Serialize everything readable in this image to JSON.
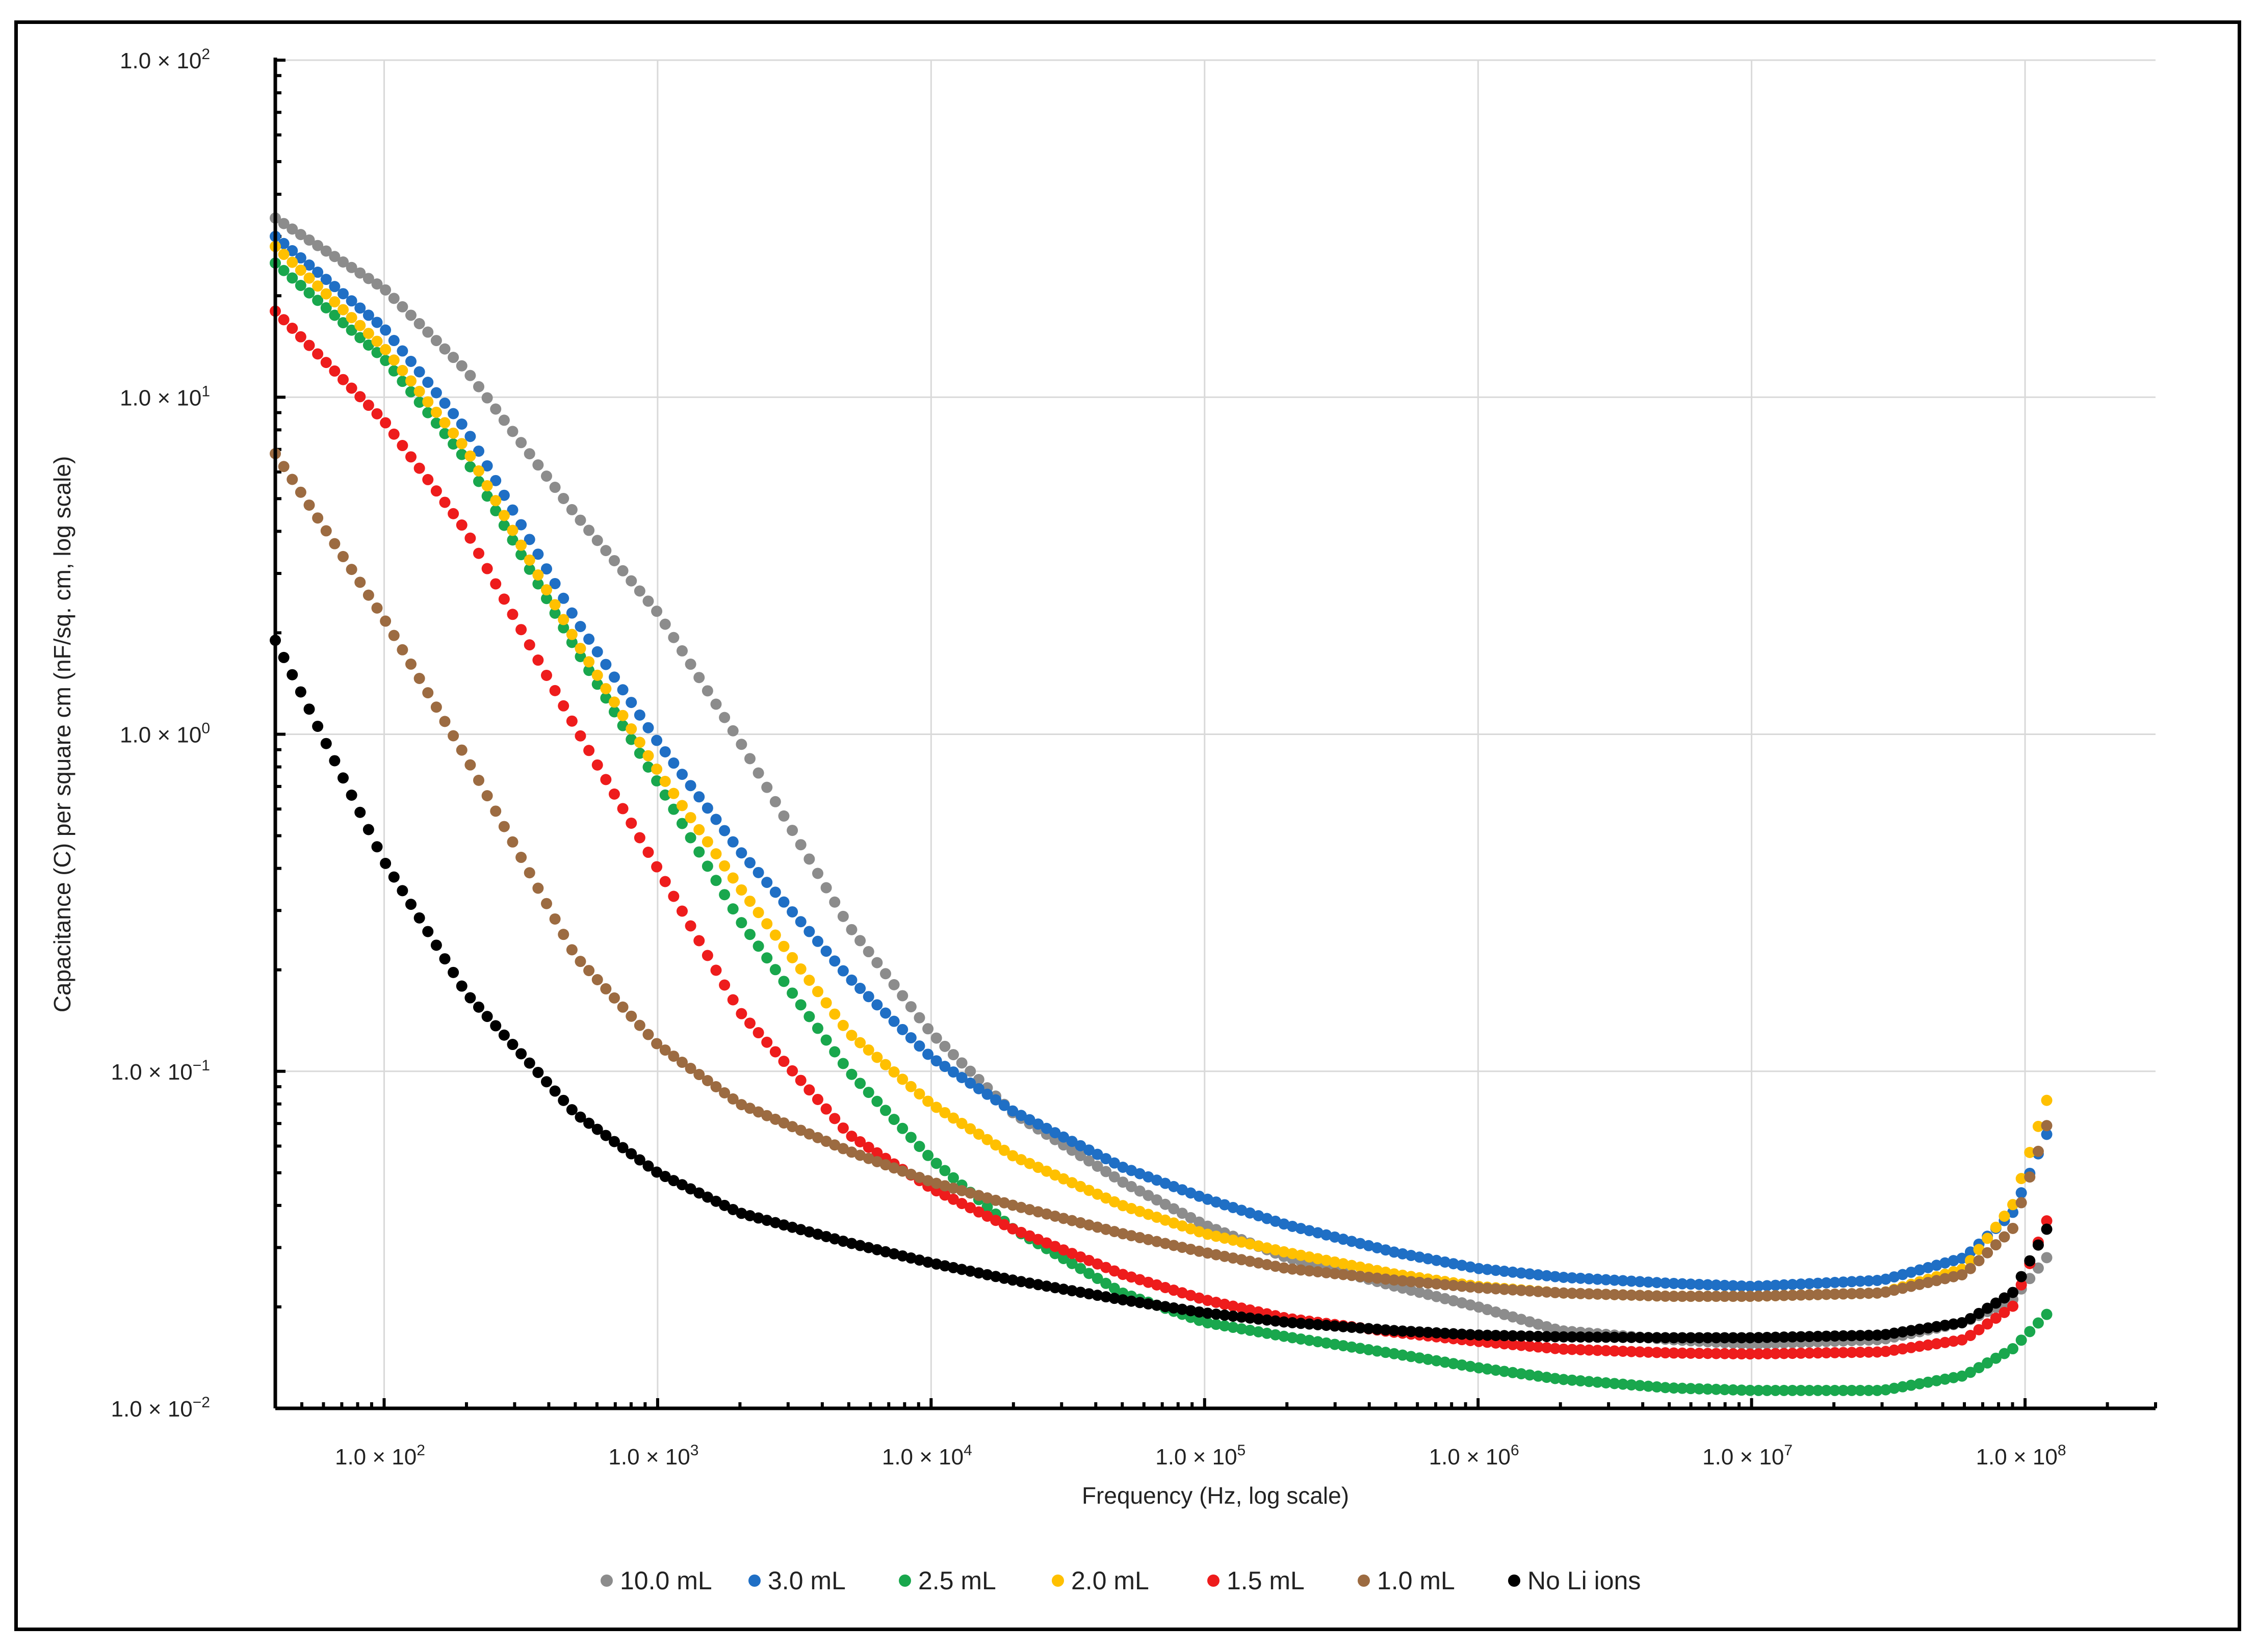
{
  "chart_data": {
    "type": "scatter",
    "xscale": "log",
    "yscale": "log",
    "xlim": [
      40,
      300000000
    ],
    "ylim": [
      0.01,
      100
    ],
    "grid": true,
    "legend_position": "bottom",
    "xlabel": "Frequency (Hz, log scale)",
    "ylabel": "Capacitance (C) per square cm (nF/sq. cm, log scale)",
    "x_ticks": [
      {
        "value": 100,
        "mant": "1.0 × 10",
        "exp": "2"
      },
      {
        "value": 1000,
        "mant": "1.0 × 10",
        "exp": "3"
      },
      {
        "value": 10000,
        "mant": "1.0 × 10",
        "exp": "4"
      },
      {
        "value": 100000,
        "mant": "1.0 × 10",
        "exp": "5"
      },
      {
        "value": 1000000,
        "mant": "1.0 × 10",
        "exp": "6"
      },
      {
        "value": 10000000,
        "mant": "1.0 × 10",
        "exp": "7"
      },
      {
        "value": 100000000,
        "mant": "1.0 × 10",
        "exp": "8"
      }
    ],
    "y_ticks": [
      {
        "value": 100,
        "mant": "1.0 × 10",
        "exp": "2"
      },
      {
        "value": 10,
        "mant": "1.0 × 10",
        "exp": "1"
      },
      {
        "value": 1,
        "mant": "1.0 × 10",
        "exp": "0"
      },
      {
        "value": 0.1,
        "mant": "1.0 × 10",
        "exp": "−1"
      },
      {
        "value": 0.01,
        "mant": "1.0 × 10",
        "exp": "−2"
      }
    ],
    "series": [
      {
        "name": "10.0 mL",
        "color": "#8c8c8c",
        "x": [
          40,
          100,
          200,
          500,
          1000,
          2000,
          5000,
          10000,
          20000,
          50000,
          100000,
          200000,
          500000,
          1000000,
          2000000,
          5000000,
          10000000,
          30000000,
          60000000,
          90000000,
          120000000
        ],
        "y": [
          34,
          21,
          12,
          4.5,
          2.3,
          0.95,
          0.27,
          0.13,
          0.075,
          0.047,
          0.035,
          0.028,
          0.023,
          0.02,
          0.017,
          0.016,
          0.0155,
          0.016,
          0.018,
          0.021,
          0.028
        ]
      },
      {
        "name": "3.0 mL",
        "color": "#1f6fc5",
        "x": [
          40,
          100,
          200,
          500,
          1000,
          2000,
          5000,
          10000,
          20000,
          50000,
          100000,
          200000,
          500000,
          1000000,
          2000000,
          5000000,
          10000000,
          30000000,
          60000000,
          90000000,
          120000000
        ],
        "y": [
          30,
          16,
          8,
          2.2,
          0.95,
          0.45,
          0.19,
          0.11,
          0.076,
          0.052,
          0.042,
          0.035,
          0.029,
          0.026,
          0.0245,
          0.0235,
          0.023,
          0.024,
          0.028,
          0.038,
          0.065
        ]
      },
      {
        "name": "2.5 mL",
        "color": "#19a74d",
        "x": [
          40,
          100,
          200,
          500,
          1000,
          2000,
          5000,
          10000,
          20000,
          50000,
          100000,
          200000,
          500000,
          1000000,
          2000000,
          5000000,
          10000000,
          30000000,
          60000000,
          90000000,
          120000000
        ],
        "y": [
          25,
          13,
          6.5,
          1.8,
          0.72,
          0.28,
          0.1,
          0.055,
          0.034,
          0.022,
          0.018,
          0.0163,
          0.0145,
          0.0132,
          0.0122,
          0.0115,
          0.0113,
          0.0113,
          0.0125,
          0.015,
          0.019
        ]
      },
      {
        "name": "2.0 mL",
        "color": "#ffc000",
        "x": [
          40,
          100,
          200,
          500,
          1000,
          2000,
          5000,
          10000,
          20000,
          50000,
          100000,
          200000,
          500000,
          1000000,
          2000000,
          5000000,
          10000000,
          30000000,
          60000000,
          90000000,
          120000000
        ],
        "y": [
          28,
          14,
          7,
          1.9,
          0.78,
          0.35,
          0.13,
          0.08,
          0.056,
          0.04,
          0.033,
          0.029,
          0.025,
          0.023,
          0.022,
          0.0215,
          0.0215,
          0.022,
          0.026,
          0.04,
          0.082
        ]
      },
      {
        "name": "1.5 mL",
        "color": "#ee1c1c",
        "x": [
          40,
          100,
          200,
          500,
          1000,
          2000,
          5000,
          10000,
          20000,
          50000,
          100000,
          200000,
          500000,
          1000000,
          2000000,
          5000000,
          10000000,
          30000000,
          60000000,
          90000000,
          120000000
        ],
        "y": [
          18,
          8.5,
          4,
          1.05,
          0.4,
          0.15,
          0.065,
          0.045,
          0.034,
          0.025,
          0.021,
          0.0185,
          0.0168,
          0.0158,
          0.015,
          0.0146,
          0.0145,
          0.0147,
          0.016,
          0.02,
          0.036
        ]
      },
      {
        "name": "1.0 mL",
        "color": "#9c6b41",
        "x": [
          40,
          100,
          200,
          500,
          1000,
          2000,
          5000,
          10000,
          20000,
          50000,
          100000,
          200000,
          500000,
          1000000,
          2000000,
          5000000,
          10000000,
          30000000,
          60000000,
          90000000,
          120000000
        ],
        "y": [
          6.8,
          2.2,
          0.85,
          0.22,
          0.12,
          0.08,
          0.058,
          0.047,
          0.04,
          0.033,
          0.029,
          0.026,
          0.024,
          0.0228,
          0.022,
          0.0215,
          0.0215,
          0.022,
          0.025,
          0.034,
          0.069
        ]
      },
      {
        "name": "No Li ions",
        "color": "#000000",
        "x": [
          40,
          100,
          200,
          500,
          1000,
          2000,
          5000,
          10000,
          20000,
          50000,
          100000,
          200000,
          500000,
          1000000,
          2000000,
          5000000,
          10000000,
          30000000,
          60000000,
          90000000,
          120000000
        ],
        "y": [
          1.9,
          0.42,
          0.17,
          0.075,
          0.05,
          0.038,
          0.031,
          0.027,
          0.024,
          0.021,
          0.0192,
          0.018,
          0.017,
          0.0165,
          0.0163,
          0.0162,
          0.0162,
          0.0165,
          0.018,
          0.022,
          0.034
        ]
      }
    ]
  }
}
